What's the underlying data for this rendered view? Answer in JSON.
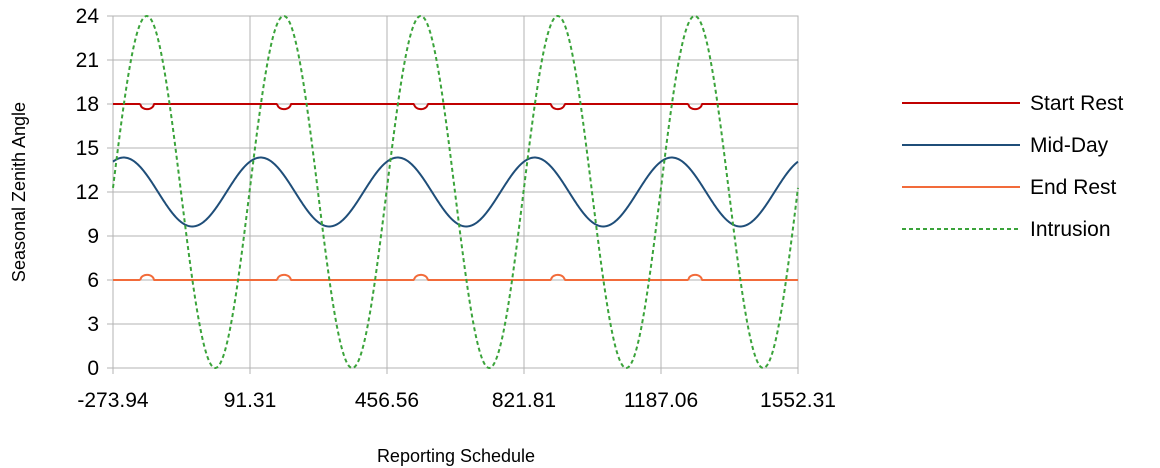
{
  "chart_data": {
    "type": "line",
    "xlabel": "Reporting Schedule",
    "ylabel": "Seasonal Zenith Angle",
    "xlim": [
      -273.94,
      1552.31
    ],
    "ylim": [
      0,
      24
    ],
    "x_ticks": [
      "-273.94",
      "91.31",
      "456.56",
      "821.81",
      "1187.06",
      "1552.31"
    ],
    "y_ticks": [
      "0",
      "3",
      "6",
      "9",
      "12",
      "15",
      "18",
      "21",
      "24"
    ],
    "grid": true,
    "legend_position": "right",
    "period": 365.25,
    "series": [
      {
        "name": "Start Rest",
        "color": "#c00000",
        "dash": "solid",
        "shape": "constant with small dips",
        "baseline": 18,
        "dip_depth": 0.35,
        "dip_centers": [
          -183,
          182,
          547,
          912,
          1278
        ]
      },
      {
        "name": "Mid-Day",
        "color": "#1f4e79",
        "dash": "solid",
        "shape": "sinusoid",
        "mean": 12,
        "amplitude": 2.35,
        "peak_x": 120
      },
      {
        "name": "End Rest",
        "color": "#f26b3a",
        "dash": "solid",
        "shape": "constant with small bumps",
        "baseline": 6,
        "bump_height": 0.35,
        "bump_centers": [
          -183,
          182,
          547,
          912,
          1278
        ]
      },
      {
        "name": "Intrusion",
        "color": "#3aa33a",
        "dash": "dashed",
        "shape": "sinusoid",
        "mean": 12,
        "amplitude": 12,
        "peak_x": -184
      }
    ]
  }
}
